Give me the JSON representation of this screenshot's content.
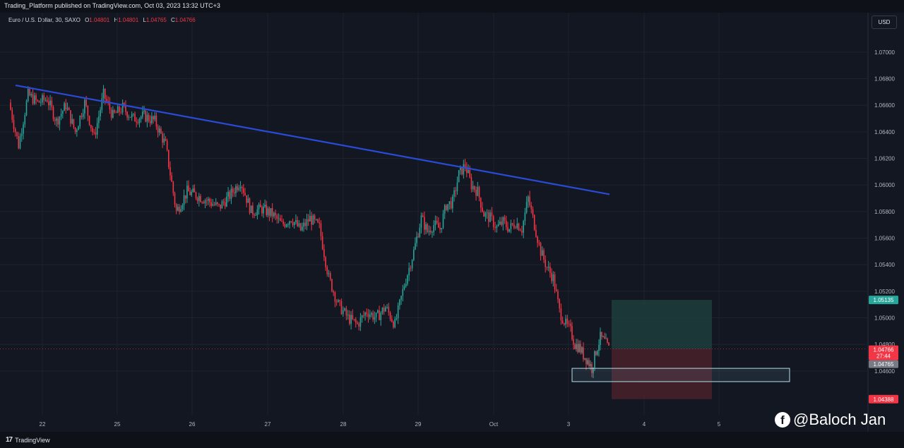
{
  "header": {
    "published": "Trading_Platform published on TradingView.com, Oct 03, 2023 13:32 UTC+3"
  },
  "symbol": {
    "name": "Euro / U.S. Dollar, 30, SAXO",
    "o_label": "O",
    "o": "1.04801",
    "h_label": "H",
    "h": "1.04801",
    "l_label": "L",
    "l": "1.04765",
    "c_label": "C",
    "c": "1.04766"
  },
  "currency_button": "USD",
  "footer": {
    "brand": "TradingView"
  },
  "watermark": {
    "text": "@Baloch Jan"
  },
  "colors": {
    "bg": "#131722",
    "up": "#26a69a",
    "down": "#f23645",
    "trendline": "#2a4bd7",
    "target_zone": "#1f3d3b",
    "stop_zone": "#4a2129"
  },
  "chart_data": {
    "type": "candlestick",
    "title": "Euro / U.S. Dollar, 30, SAXO",
    "x_tick_labels": [
      "22",
      "25",
      "26",
      "27",
      "28",
      "29",
      "Oct",
      "3",
      "4",
      "5"
    ],
    "y_tick_labels": [
      "1.07000",
      "1.06800",
      "1.06600",
      "1.06400",
      "1.06200",
      "1.06000",
      "1.05800",
      "1.05600",
      "1.05400",
      "1.05200",
      "1.05000",
      "1.04800",
      "1.04600"
    ],
    "ylim": [
      1.0427,
      1.0718
    ],
    "grid": true,
    "price_labels": {
      "target": "1.05135",
      "last": "1.04766",
      "countdown": "27:44",
      "bid": "1.04765",
      "stop": "1.04388"
    },
    "price_levels": {
      "target": 1.05135,
      "last": 1.04766,
      "bid": 1.04765,
      "stop": 1.04388,
      "entry": 1.04766
    },
    "trendline": {
      "start": {
        "date": "Sep 21",
        "price": 1.0675
      },
      "end": {
        "date": "Oct 3",
        "price": 1.0593
      }
    },
    "demand_zone": {
      "from": "Oct 3",
      "to": "Oct 5",
      "top": 1.0462,
      "bottom": 1.0452
    },
    "price_path": [
      [
        "Sep 21",
        1.0662
      ],
      [
        "Sep 21",
        1.063
      ],
      [
        "Sep 21",
        1.0668
      ],
      [
        "Sep 21",
        1.0662
      ],
      [
        "Sep 22",
        1.0665
      ],
      [
        "Sep 22",
        1.0648
      ],
      [
        "Sep 22",
        1.066
      ],
      [
        "Sep 22",
        1.064
      ],
      [
        "Sep 22",
        1.0662
      ],
      [
        "Sep 22",
        1.0636
      ],
      [
        "Sep 22",
        1.0668
      ],
      [
        "Sep 22",
        1.0652
      ],
      [
        "Sep 25",
        1.0658
      ],
      [
        "Sep 25",
        1.065
      ],
      [
        "Sep 25",
        1.0652
      ],
      [
        "Sep 25",
        1.0648
      ],
      [
        "Sep 25",
        1.063
      ],
      [
        "Sep 25",
        1.058
      ],
      [
        "Sep 25",
        1.0595
      ],
      [
        "Sep 26",
        1.0592
      ],
      [
        "Sep 26",
        1.0588
      ],
      [
        "Sep 26",
        1.0583
      ],
      [
        "Sep 26",
        1.0592
      ],
      [
        "Sep 26",
        1.0603
      ],
      [
        "Sep 26",
        1.058
      ],
      [
        "Sep 26",
        1.0582
      ],
      [
        "Sep 27",
        1.0578
      ],
      [
        "Sep 27",
        1.057
      ],
      [
        "Sep 27",
        1.0575
      ],
      [
        "Sep 27",
        1.0566
      ],
      [
        "Sep 27",
        1.0575
      ],
      [
        "Sep 27",
        1.0568
      ],
      [
        "Sep 27",
        1.053
      ],
      [
        "Sep 27",
        1.051
      ],
      [
        "Sep 28",
        1.05
      ],
      [
        "Sep 28",
        1.0495
      ],
      [
        "Sep 28",
        1.0505
      ],
      [
        "Sep 28",
        1.05
      ],
      [
        "Sep 28",
        1.0508
      ],
      [
        "Sep 28",
        1.0495
      ],
      [
        "Sep 28",
        1.0525
      ],
      [
        "Sep 28",
        1.055
      ],
      [
        "Sep 29",
        1.0575
      ],
      [
        "Sep 29",
        1.0565
      ],
      [
        "Sep 29",
        1.057
      ],
      [
        "Sep 29",
        1.0567
      ],
      [
        "Sep 29",
        1.0585
      ],
      [
        "Sep 29",
        1.0587
      ],
      [
        "Sep 29",
        1.0608
      ],
      [
        "Sep 29",
        1.0615
      ],
      [
        "Sep 29",
        1.06
      ],
      [
        "Sep 29",
        1.0595
      ],
      [
        "Sep 29",
        1.0578
      ],
      [
        "Sep 29",
        1.0575
      ],
      [
        "Oct 2",
        1.0568
      ],
      [
        "Oct 2",
        1.0572
      ],
      [
        "Oct 2",
        1.0567
      ],
      [
        "Oct 2",
        1.0572
      ],
      [
        "Oct 2",
        1.0567
      ],
      [
        "Oct 2",
        1.059
      ],
      [
        "Oct 2",
        1.057
      ],
      [
        "Oct 2",
        1.055
      ],
      [
        "Oct 2",
        1.0538
      ],
      [
        "Oct 2",
        1.053
      ],
      [
        "Oct 2",
        1.0505
      ],
      [
        "Oct 2",
        1.0495
      ],
      [
        "Oct 3",
        1.049
      ],
      [
        "Oct 3",
        1.048
      ],
      [
        "Oct 3",
        1.0478
      ],
      [
        "Oct 3",
        1.0472
      ],
      [
        "Oct 3",
        1.0468
      ],
      [
        "Oct 3",
        1.0462
      ],
      [
        "Oct 3",
        1.0475
      ],
      [
        "Oct 3",
        1.0485
      ],
      [
        "Oct 3",
        1.0482
      ],
      [
        "Oct 3",
        1.04766
      ]
    ],
    "trade_box": {
      "from": "Oct 3",
      "to": "Oct 4",
      "target": 1.05135,
      "entry": 1.04766,
      "stop": 1.04388
    }
  }
}
